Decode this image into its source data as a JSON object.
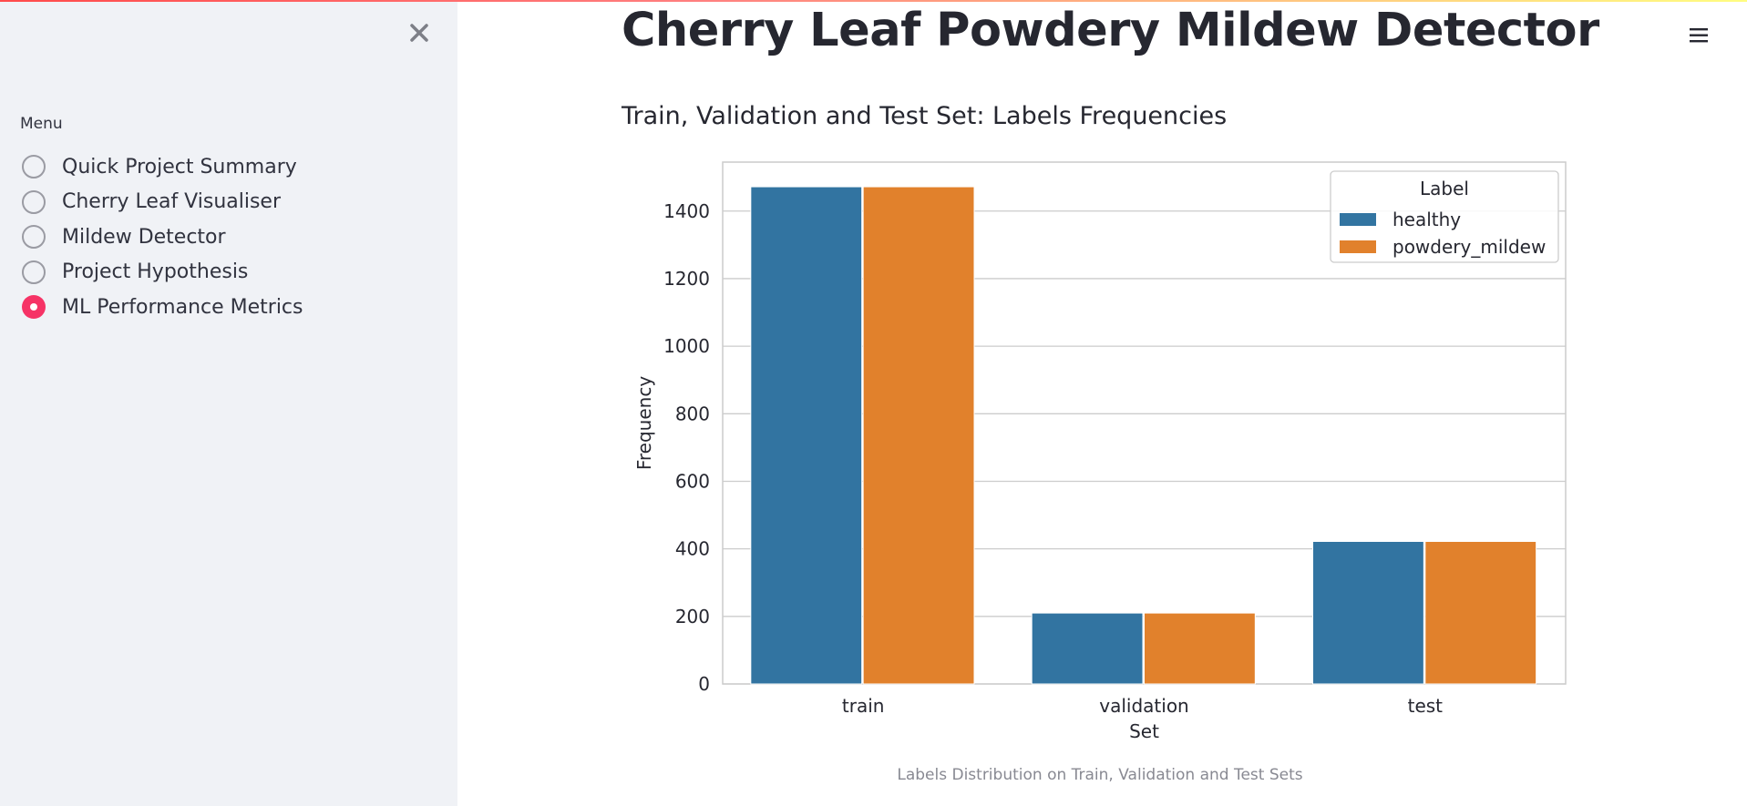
{
  "sidebar": {
    "close_icon": "close-icon",
    "menu_label": "Menu",
    "items": [
      {
        "label": "Quick Project Summary",
        "selected": false
      },
      {
        "label": "Cherry Leaf Visualiser",
        "selected": false
      },
      {
        "label": "Mildew Detector",
        "selected": false
      },
      {
        "label": "Project Hypothesis",
        "selected": false
      },
      {
        "label": "ML Performance Metrics",
        "selected": true
      }
    ],
    "accent_color": "#f63366"
  },
  "header": {
    "menu_icon": "hamburger-menu-icon"
  },
  "main": {
    "title": "Cherry Leaf Powdery Mildew Detector",
    "section_heading": "Train, Validation and Test Set: Labels Frequencies",
    "caption": "Labels Distribution on Train, Validation and Test Sets"
  },
  "chart_data": {
    "type": "bar",
    "categories": [
      "train",
      "validation",
      "test"
    ],
    "series": [
      {
        "name": "healthy",
        "values": [
          1472,
          210,
          422
        ],
        "color": "#3274a1"
      },
      {
        "name": "powdery_mildew",
        "values": [
          1472,
          210,
          422
        ],
        "color": "#e1812c"
      }
    ],
    "xlabel": "Set",
    "ylabel": "Frequency",
    "yticks": [
      0,
      200,
      400,
      600,
      800,
      1000,
      1200,
      1400
    ],
    "ylim": [
      0,
      1545
    ],
    "legend_title": "Label",
    "legend_position": "top-right",
    "grid": true
  }
}
